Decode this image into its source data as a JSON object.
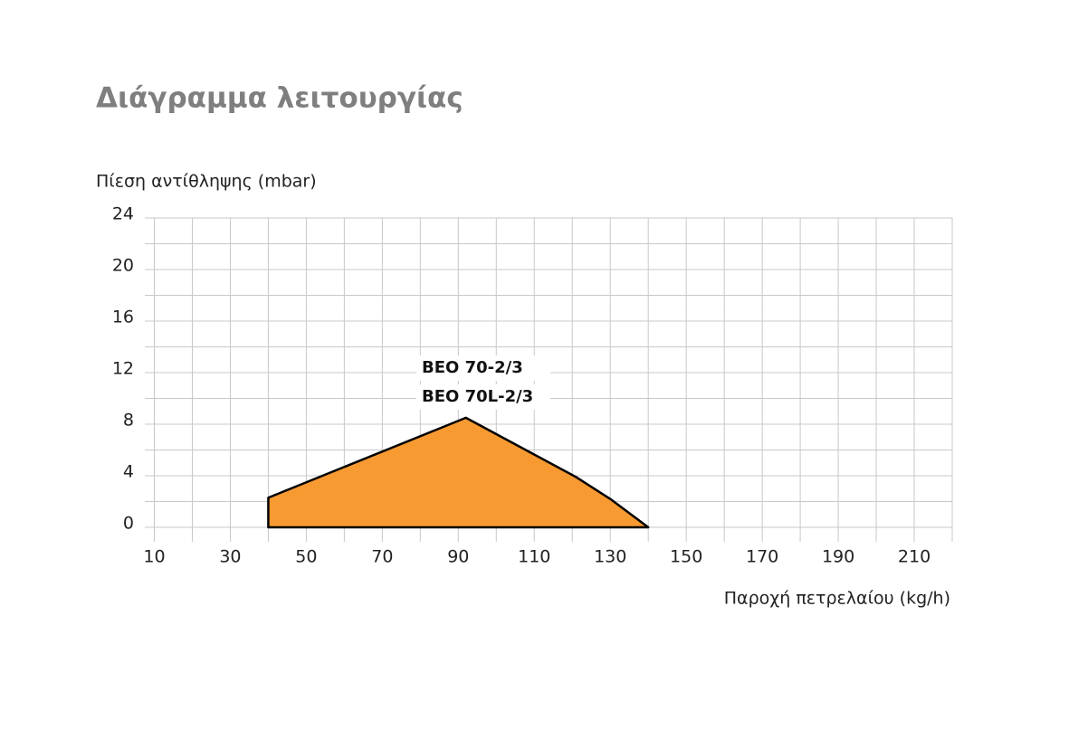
{
  "chart_data": {
    "type": "area",
    "title": "Διάγραμμα λειτουργίας",
    "y_label": "Πίεση αντίθληψης (mbar)",
    "x_label": "Παροχή πετρελαίου (kg/h)",
    "labels": [
      "BEO 70-2/3",
      "BEO 70L-2/3"
    ],
    "x": [
      40,
      40,
      92,
      121,
      130,
      140
    ],
    "values": [
      0,
      2.3,
      8.5,
      3.9,
      2.2,
      0
    ],
    "color": "#f79a32",
    "xlim": [
      7.5,
      220
    ],
    "xticks": [
      10,
      30,
      50,
      70,
      90,
      110,
      130,
      150,
      170,
      190,
      210
    ],
    "xminor": [
      20,
      40,
      60,
      80,
      100,
      120,
      140,
      160,
      180,
      200,
      220
    ],
    "ylim": [
      0,
      24
    ],
    "yticks": [
      0,
      4,
      8,
      12,
      16,
      20,
      24
    ],
    "yminor": [
      2,
      6,
      10,
      14,
      18,
      22
    ],
    "grid": true
  }
}
